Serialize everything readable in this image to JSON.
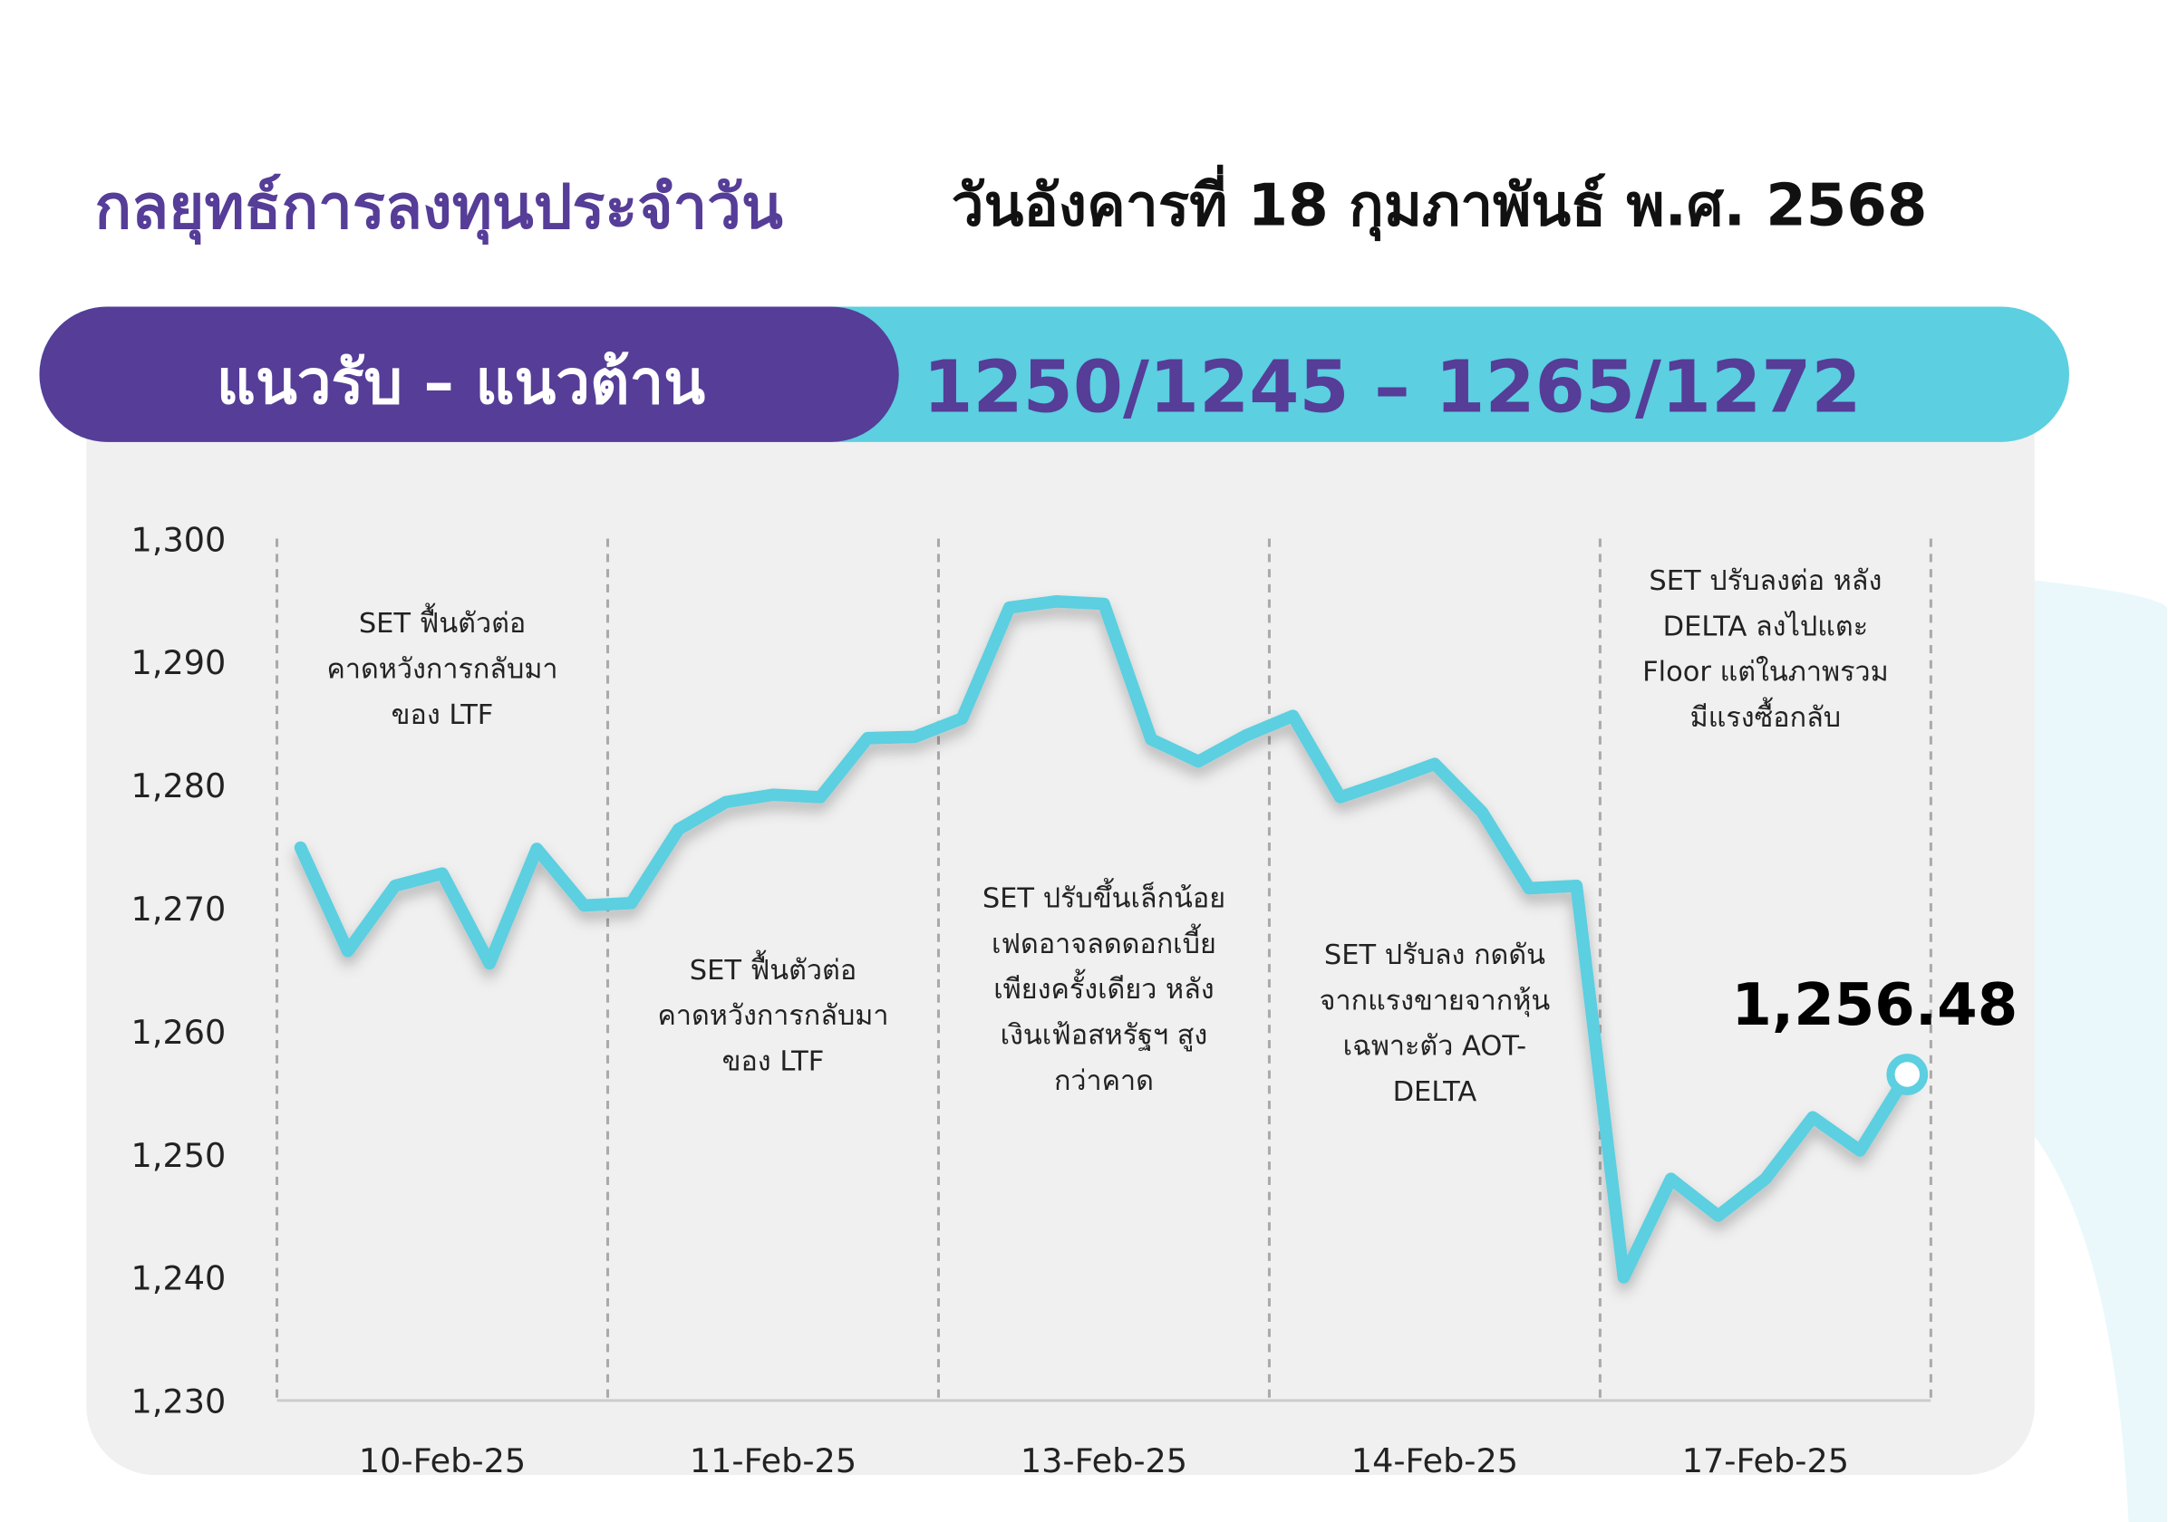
{
  "header": {
    "title": "กลยุทธ์การลงทุนประจำวัน",
    "date": "วันอังคารที่ 18 กุมภาพันธ์ พ.ศ. 2568",
    "band_label": "แนวรับ – แนวต้าน",
    "band_value": "1250/1245 – 1265/1272"
  },
  "chart_data": {
    "type": "line",
    "categories": [
      null,
      null,
      null,
      "10-Feb-25",
      null,
      null,
      null,
      null,
      null,
      null,
      "11-Feb-25",
      null,
      null,
      null,
      null,
      null,
      null,
      "13-Feb-25",
      null,
      null,
      null,
      null,
      null,
      null,
      "14-Feb-25",
      null,
      null,
      null,
      null,
      null,
      null,
      "17-Feb-25",
      null,
      null,
      null
    ],
    "series": [
      {
        "name": "SET",
        "color": "#5ccfe0",
        "values": [
          1274.9,
          1266.5,
          1271.8,
          1272.8,
          1265.5,
          1274.8,
          1270.2,
          1270.4,
          1276.4,
          1278.6,
          1279.2,
          1279.0,
          1283.8,
          1283.9,
          1285.4,
          1294.4,
          1294.9,
          1294.7,
          1283.7,
          1281.9,
          1284.0,
          1285.6,
          1279.0,
          1280.3,
          1281.7,
          1277.8,
          1271.6,
          1271.8,
          1240.0,
          1248.0,
          1245.0,
          1248.0,
          1253.0,
          1250.3,
          1256.48
        ],
        "value_labels": [
          null,
          null,
          null,
          null,
          null,
          null,
          null,
          null,
          null,
          null,
          null,
          null,
          null,
          null,
          null,
          null,
          null,
          null,
          null,
          null,
          null,
          null,
          null,
          null,
          null,
          null,
          null,
          null,
          null,
          null,
          null,
          null,
          null,
          null,
          "1,256.48"
        ]
      }
    ],
    "ylim": [
      1230,
      1300
    ],
    "yticks": [
      {
        "value": 1230,
        "label": "1,230"
      },
      {
        "value": 1240,
        "label": "1,240"
      },
      {
        "value": 1250,
        "label": "1,250"
      },
      {
        "value": 1260,
        "label": "1,260"
      },
      {
        "value": 1270,
        "label": "1,270"
      },
      {
        "value": 1280,
        "label": "1,280"
      },
      {
        "value": 1290,
        "label": "1,290"
      },
      {
        "value": 1300,
        "label": "1,300"
      }
    ],
    "annotations": [
      [
        "SET ฟื้นตัวต่อ",
        "คาดหวังการกลับมา",
        "ของ LTF"
      ],
      [
        "SET ฟื้นตัวต่อ",
        "คาดหวังการกลับมา",
        "ของ LTF"
      ],
      [
        "SET ปรับขึ้นเล็กน้อย",
        "เฟดอาจลดดอกเบี้ย",
        "เพียงครั้งเดียว หลัง",
        "เงินเฟ้อสหรัฐฯ สูง",
        "กว่าคาด"
      ],
      [
        "SET ปรับลง กดดัน",
        "จากแรงขายจากหุ้น",
        "เฉพาะตัว AOT-",
        "DELTA"
      ],
      [
        "SET ปรับลงต่อ หลัง",
        "DELTA ลงไปแตะ",
        "Floor แต่ในภาพรวม",
        "มีแรงซื้อกลับ"
      ]
    ]
  }
}
